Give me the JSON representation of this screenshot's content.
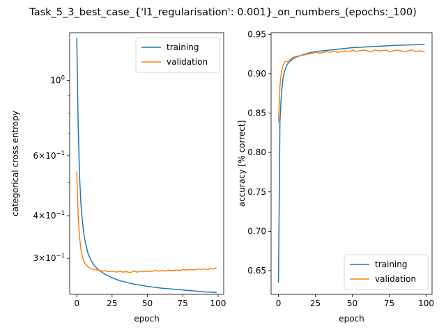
{
  "figure_title": "Task_5_3_best_case_{'l1_regularisation': 0.001}_on_numbers_(epochs:_100)",
  "chart_data": [
    {
      "type": "line",
      "xlabel": "epoch",
      "ylabel": "categorical cross entropy",
      "yscale": "log",
      "xlim": [
        -5,
        104
      ],
      "ylim": [
        0.235,
        1.38
      ],
      "xticks": [
        0,
        25,
        50,
        75,
        100
      ],
      "ytick_labels": [
        {
          "value": 1.0,
          "base": "10",
          "exp": "0"
        },
        {
          "value": 0.6,
          "base": "6×10",
          "exp": "−1"
        },
        {
          "value": 0.4,
          "base": "4×10",
          "exp": "−1"
        },
        {
          "value": 0.3,
          "base": "3×10",
          "exp": "−1"
        }
      ],
      "minor_ticks": [
        0.5,
        0.7,
        0.8,
        0.9
      ],
      "legend_position": "top-right",
      "series": [
        {
          "name": "training",
          "color": "#1f77b4",
          "x": [
            0,
            1,
            2,
            3,
            4,
            5,
            6,
            8,
            10,
            12,
            15,
            20,
            25,
            30,
            40,
            50,
            60,
            70,
            80,
            90,
            99
          ],
          "y": [
            1.33,
            0.74,
            0.52,
            0.43,
            0.385,
            0.355,
            0.335,
            0.31,
            0.296,
            0.287,
            0.278,
            0.269,
            0.263,
            0.258,
            0.252,
            0.248,
            0.245,
            0.243,
            0.241,
            0.239,
            0.238
          ]
        },
        {
          "name": "validation",
          "color": "#ff7f0e",
          "x": [
            0,
            1,
            2,
            3,
            4,
            5,
            6,
            8,
            10,
            12,
            15,
            18,
            20,
            22,
            25,
            28,
            30,
            33,
            35,
            38,
            40,
            43,
            45,
            48,
            50,
            53,
            55,
            58,
            60,
            63,
            65,
            68,
            70,
            73,
            75,
            78,
            80,
            83,
            85,
            88,
            90,
            93,
            95,
            97,
            98,
            99
          ],
          "y": [
            0.54,
            0.4,
            0.345,
            0.318,
            0.303,
            0.294,
            0.289,
            0.283,
            0.28,
            0.278,
            0.277,
            0.275,
            0.276,
            0.274,
            0.275,
            0.273,
            0.275,
            0.273,
            0.274,
            0.272,
            0.275,
            0.273,
            0.275,
            0.274,
            0.275,
            0.274,
            0.276,
            0.275,
            0.276,
            0.275,
            0.277,
            0.276,
            0.277,
            0.276,
            0.278,
            0.277,
            0.278,
            0.277,
            0.279,
            0.278,
            0.279,
            0.278,
            0.28,
            0.279,
            0.281,
            0.28
          ]
        }
      ]
    },
    {
      "type": "line",
      "xlabel": "epoch",
      "ylabel": "accuracy [% correct]",
      "yscale": "linear",
      "xlim": [
        -5,
        104
      ],
      "ylim": [
        0.62,
        0.952
      ],
      "xticks": [
        0,
        25,
        50,
        75,
        100
      ],
      "yticks": [
        0.65,
        0.7,
        0.75,
        0.8,
        0.85,
        0.9,
        0.95
      ],
      "legend_position": "bottom-right",
      "series": [
        {
          "name": "training",
          "color": "#1f77b4",
          "x": [
            0,
            1,
            2,
            3,
            4,
            5,
            6,
            8,
            10,
            12,
            15,
            20,
            25,
            30,
            40,
            50,
            60,
            70,
            80,
            90,
            99
          ],
          "y": [
            0.635,
            0.84,
            0.875,
            0.893,
            0.902,
            0.908,
            0.912,
            0.916,
            0.919,
            0.921,
            0.923,
            0.926,
            0.928,
            0.929,
            0.931,
            0.933,
            0.934,
            0.935,
            0.936,
            0.9365,
            0.937
          ]
        },
        {
          "name": "validation",
          "color": "#ff7f0e",
          "x": [
            0,
            1,
            2,
            3,
            4,
            5,
            6,
            8,
            10,
            12,
            15,
            18,
            20,
            23,
            25,
            28,
            30,
            33,
            35,
            38,
            40,
            43,
            45,
            48,
            50,
            53,
            55,
            58,
            60,
            63,
            65,
            68,
            70,
            73,
            75,
            78,
            80,
            83,
            85,
            88,
            90,
            93,
            95,
            98,
            99
          ],
          "y": [
            0.838,
            0.885,
            0.902,
            0.91,
            0.914,
            0.916,
            0.915,
            0.918,
            0.921,
            0.922,
            0.923,
            0.924,
            0.925,
            0.926,
            0.927,
            0.926,
            0.927,
            0.928,
            0.927,
            0.929,
            0.927,
            0.928,
            0.929,
            0.928,
            0.93,
            0.928,
            0.929,
            0.93,
            0.929,
            0.928,
            0.93,
            0.929,
            0.929,
            0.93,
            0.928,
            0.929,
            0.93,
            0.929,
            0.928,
            0.929,
            0.93,
            0.928,
            0.929,
            0.928,
            0.928
          ]
        }
      ]
    }
  ]
}
